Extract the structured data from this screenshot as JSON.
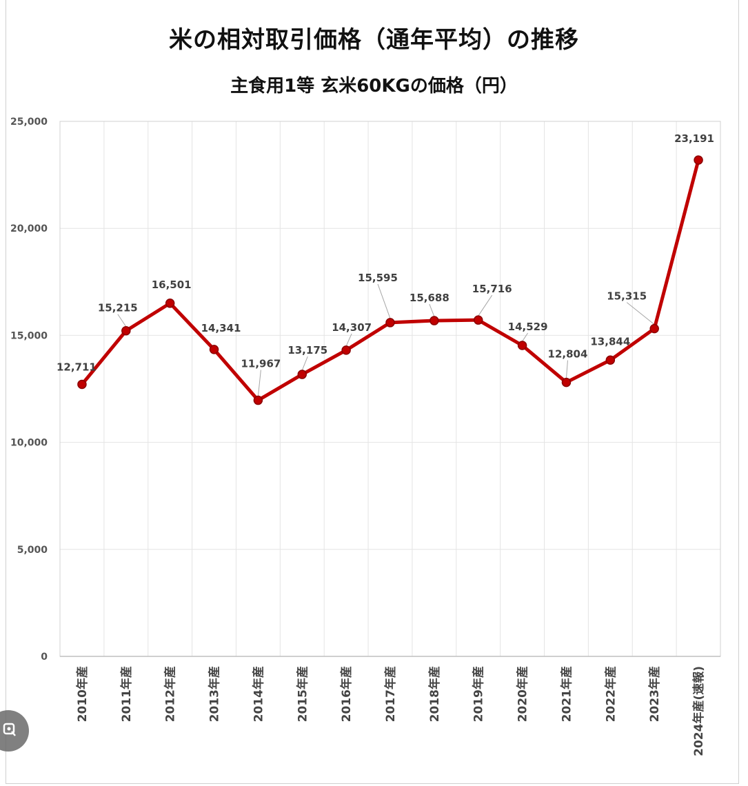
{
  "header": {
    "title": "米の相対取引価格（通年平均）の推移",
    "subtitle": "主食用1等 玄米60KGの価格（円）"
  },
  "ui": {
    "lens_icon": "image-search-icon"
  },
  "chart_data": {
    "type": "line",
    "title": "米の相対取引価格（通年平均）の推移",
    "subtitle": "主食用1等 玄米60KGの価格（円）",
    "xlabel": "",
    "ylabel": "",
    "categories": [
      "2010年産",
      "2011年産",
      "2012年産",
      "2013年産",
      "2014年産",
      "2015年産",
      "2016年産",
      "2017年産",
      "2018年産",
      "2019年産",
      "2020年産",
      "2021年産",
      "2022年産",
      "2023年産",
      "2024年産(速報)"
    ],
    "series": [
      {
        "values": [
          12711,
          15215,
          16501,
          14341,
          11967,
          13175,
          14307,
          15595,
          15688,
          15716,
          14529,
          12804,
          13844,
          15315,
          23191
        ]
      }
    ],
    "data_labels": [
      "12,711",
      "15,215",
      "16,501",
      "14,341",
      "11,967",
      "13,175",
      "14,307",
      "15,595",
      "15,688",
      "15,716",
      "14,529",
      "12,804",
      "13,844",
      "15,315",
      "23,191"
    ],
    "ylim": [
      0,
      25000
    ],
    "yticks": [
      0,
      5000,
      10000,
      15000,
      20000,
      25000
    ],
    "ytick_labels": [
      "0",
      "5,000",
      "10,000",
      "15,000",
      "20,000",
      "25,000"
    ],
    "grid": true,
    "legend": "none",
    "line_color": "#c00000"
  }
}
